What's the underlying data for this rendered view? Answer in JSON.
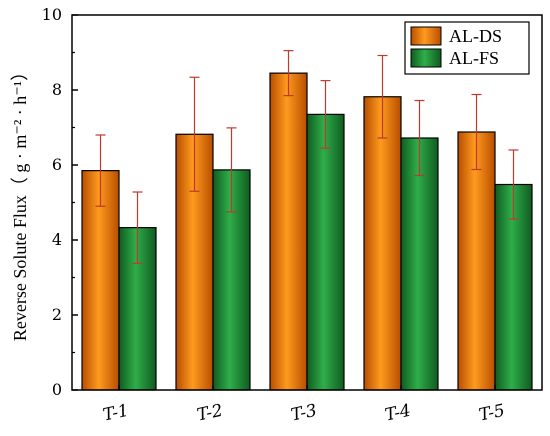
{
  "chart_data": {
    "type": "bar",
    "categories": [
      "T-1",
      "T-2",
      "T-3",
      "T-4",
      "T-5"
    ],
    "series": [
      {
        "name": "AL-DS",
        "color": "#ff8000",
        "values": [
          5.85,
          6.82,
          8.45,
          7.82,
          6.88
        ],
        "errors": [
          0.95,
          1.52,
          0.6,
          1.1,
          1.0
        ]
      },
      {
        "name": "AL-FS",
        "color": "#1e9437",
        "values": [
          4.33,
          5.87,
          7.35,
          6.72,
          5.48
        ],
        "errors": [
          0.95,
          1.12,
          0.9,
          1.0,
          0.92
        ]
      }
    ],
    "xlabel": "",
    "ylabel": "Reverse Solute Flux（ g · m⁻² · h⁻¹）",
    "ylim": [
      0,
      10
    ],
    "yticks": [
      0,
      2,
      4,
      6,
      8,
      10
    ],
    "grid": false,
    "legend_position": "top-right"
  }
}
